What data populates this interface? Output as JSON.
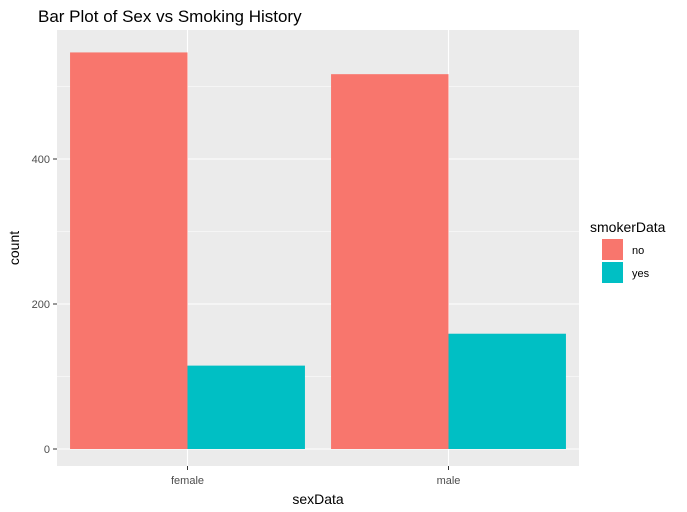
{
  "chart_data": {
    "type": "bar",
    "title": "Bar Plot of Sex vs Smoking History",
    "xlabel": "sexData",
    "ylabel": "count",
    "categories": [
      "female",
      "male"
    ],
    "series": [
      {
        "name": "no",
        "color": "#F8766D",
        "values": [
          547,
          517
        ]
      },
      {
        "name": "yes",
        "color": "#00BFC4",
        "values": [
          115,
          159
        ]
      }
    ],
    "ylim": [
      0,
      572
    ],
    "yticks": [
      0,
      200,
      400
    ],
    "grid": true,
    "legend": {
      "title": "smokerData",
      "position": "right"
    },
    "panel_background": "#EBEBEB",
    "grid_color": "#FFFFFF"
  }
}
